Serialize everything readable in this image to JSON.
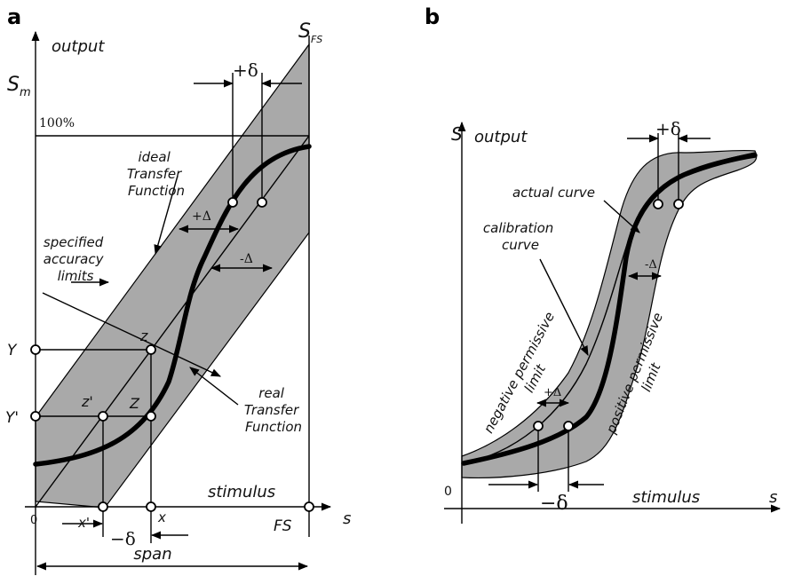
{
  "panels": {
    "a": {
      "letter": "a",
      "output_label": "output",
      "sm_label": "S",
      "sm_sub": "m",
      "sfs_label": "S",
      "sfs_sub": "FS",
      "percent_label": "100%",
      "plus_delta_top": "+δ",
      "ideal_label": [
        "ideal",
        "Transfer",
        "Function"
      ],
      "plus_big_delta": "+Δ",
      "minus_big_delta": "-Δ",
      "accuracy_label": [
        "specified",
        "accuracy",
        "limits"
      ],
      "z_label": "z",
      "z_prime_label": "z'",
      "Z_label": "Z",
      "Y_label": "Y",
      "Y_prime_label": "Y'",
      "real_label": [
        "real",
        "Transfer",
        "Function"
      ],
      "stimulus_label": "stimulus",
      "zero_label": "0",
      "x_prime_label": "x'",
      "x_label": "x",
      "fs_label": "FS",
      "s_label": "s",
      "minus_delta_bottom": "−δ",
      "span_label": "span"
    },
    "b": {
      "letter": "b",
      "s_label": "S",
      "output_label": "output",
      "plus_delta_top": "+δ",
      "actual_label": "actual curve",
      "calibration_label": [
        "calibration",
        "curve"
      ],
      "minus_big_delta": "-Δ",
      "plus_big_delta": "+Δ",
      "negative_limit_label": [
        "negative permissive",
        "limit"
      ],
      "positive_limit_label": [
        "positive permissive",
        "limit"
      ],
      "zero_label": "0",
      "minus_delta_bottom": "−δ",
      "stimulus_label": "stimulus",
      "s_axis_label": "s"
    }
  }
}
